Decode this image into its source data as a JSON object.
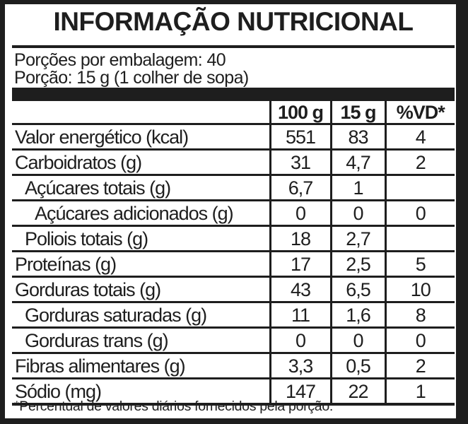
{
  "title": "INFORMAÇÃO NUTRICIONAL",
  "servings_per_package": "Porções por embalagem: 40",
  "serving_size": "Porção: 15 g (1 colher de sopa)",
  "columns": [
    "100 g",
    "15 g",
    "%VD*"
  ],
  "rows": [
    {
      "name": "Valor energético (kcal)",
      "level": 0,
      "per100g": "551",
      "perServing": "83",
      "vd": "4"
    },
    {
      "name": "Carboidratos (g)",
      "level": 0,
      "per100g": "31",
      "perServing": "4,7",
      "vd": "2"
    },
    {
      "name": "Açúcares totais (g)",
      "level": 1,
      "per100g": "6,7",
      "perServing": "1",
      "vd": ""
    },
    {
      "name": "Açúcares adicionados (g)",
      "level": 2,
      "per100g": "0",
      "perServing": "0",
      "vd": "0"
    },
    {
      "name": "Poliois totais (g)",
      "level": 1,
      "per100g": "18",
      "perServing": "2,7",
      "vd": ""
    },
    {
      "name": "Proteínas (g)",
      "level": 0,
      "per100g": "17",
      "perServing": "2,5",
      "vd": "5"
    },
    {
      "name": "Gorduras totais (g)",
      "level": 0,
      "per100g": "43",
      "perServing": "6,5",
      "vd": "10"
    },
    {
      "name": "Gorduras saturadas (g)",
      "level": 1,
      "per100g": "11",
      "perServing": "1,6",
      "vd": "8"
    },
    {
      "name": "Gorduras trans (g)",
      "level": 1,
      "per100g": "0",
      "perServing": "0",
      "vd": "0"
    },
    {
      "name": "Fibras alimentares (g)",
      "level": 0,
      "per100g": "3,3",
      "perServing": "0,5",
      "vd": "2"
    },
    {
      "name": "Sódio (mg)",
      "level": 0,
      "per100g": "147",
      "perServing": "22",
      "vd": "1"
    }
  ],
  "footnote": "*Percentual de valores diários fornecidos pela porção."
}
